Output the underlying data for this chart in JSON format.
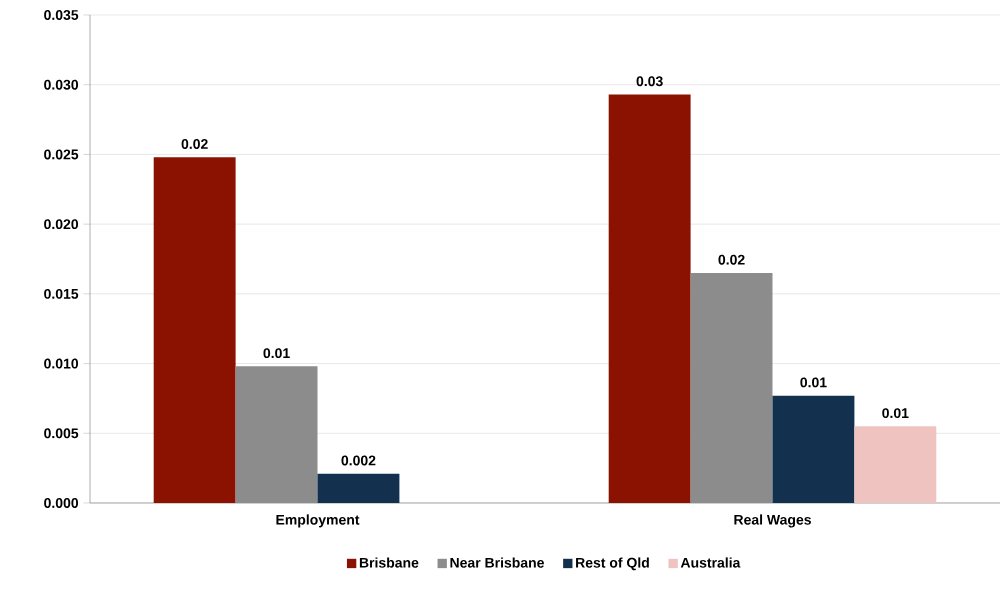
{
  "chart_data": {
    "type": "bar",
    "categories": [
      "Employment",
      "Real Wages"
    ],
    "series": [
      {
        "name": "Brisbane",
        "color": "#8b1200",
        "values": [
          0.0248,
          0.0293
        ],
        "value_labels": [
          "0.02",
          "0.03"
        ]
      },
      {
        "name": "Near Brisbane",
        "color": "#8c8c8c",
        "values": [
          0.0098,
          0.0165
        ],
        "value_labels": [
          "0.01",
          "0.02"
        ]
      },
      {
        "name": "Rest of Qld",
        "color": "#13304f",
        "values": [
          0.0021,
          0.0077
        ],
        "value_labels": [
          "0.002",
          "0.01"
        ]
      },
      {
        "name": "Australia",
        "color": "#efc3bf",
        "values": [
          null,
          0.0055
        ],
        "value_labels": [
          null,
          "0.01"
        ]
      }
    ],
    "ylim": [
      0,
      0.035
    ],
    "yticks": [
      {
        "value": 0,
        "label": "0.000"
      },
      {
        "value": 0.005,
        "label": "0.005"
      },
      {
        "value": 0.01,
        "label": "0.010"
      },
      {
        "value": 0.015,
        "label": "0.015"
      },
      {
        "value": 0.02,
        "label": "0.020"
      },
      {
        "value": 0.025,
        "label": "0.025"
      },
      {
        "value": 0.03,
        "label": "0.030"
      },
      {
        "value": 0.035,
        "label": "0.035"
      }
    ],
    "grid": "y",
    "legend": "bottom"
  }
}
